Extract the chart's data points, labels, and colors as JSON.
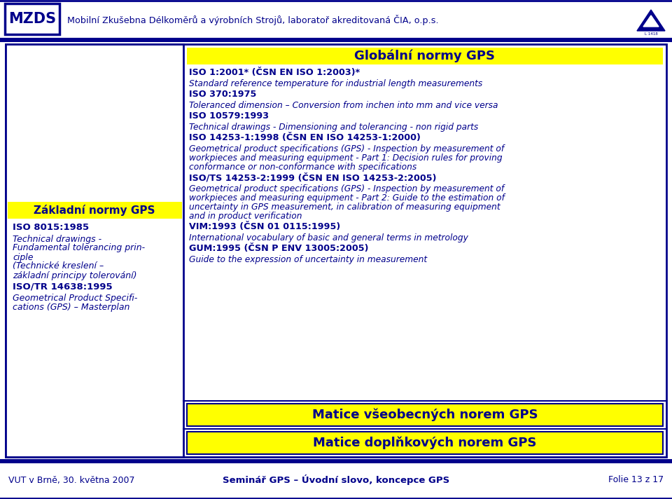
{
  "bg_color": "#ffffff",
  "dark_blue": "#00008B",
  "yellow_color": "#FFFF00",
  "header_company": "Mobilní Zkušebna Délkoměrů a výrobních Strojů, laboratoř akreditovaná ČIA, o.p.s.",
  "footer_left": "VUT v Brně, 30. května 2007",
  "footer_center": "Seminář GPS – Úvodní slovo, koncepce GPS",
  "footer_right": "Folie 13 z 17",
  "left_box_title": "Základní normy GPS",
  "right_box_title": "Globální normy GPS",
  "bottom_box1": "Matice všeobecných norem GPS",
  "bottom_box2": "Matice doplňkových norem GPS",
  "left_items": [
    {
      "bold": true,
      "italic": false,
      "text": "ISO 8015:1985"
    },
    {
      "bold": false,
      "italic": true,
      "text": "Technical drawings -\nFundamental tolerancing prin-\nciple\n(Technické kreslení –\nzákladní principy tolerování)"
    },
    {
      "bold": true,
      "italic": false,
      "text": "ISO/TR 14638:1995"
    },
    {
      "bold": false,
      "italic": true,
      "text": "Geometrical Product Specifi-\ncations (GPS) – Masterplan"
    }
  ],
  "right_items": [
    {
      "bold": true,
      "italic": false,
      "text": "ISO 1:2001* (ČSN EN ISO 1:2003)*"
    },
    {
      "bold": false,
      "italic": true,
      "text": "Standard reference temperature for industrial length measurements"
    },
    {
      "bold": true,
      "italic": false,
      "text": "ISO 370:1975"
    },
    {
      "bold": false,
      "italic": true,
      "text": "Toleranced dimension – Conversion from inchen into mm and vice versa"
    },
    {
      "bold": true,
      "italic": false,
      "text": "ISO 10579:1993"
    },
    {
      "bold": false,
      "italic": true,
      "text": "Technical drawings - Dimensioning and tolerancing - non rigid parts"
    },
    {
      "bold": true,
      "italic": false,
      "text": "ISO 14253-1:1998 (ČSN EN ISO 14253-1:2000)"
    },
    {
      "bold": false,
      "italic": true,
      "text": "Geometrical product specifications (GPS) - Inspection by measurement of\nworkpieces and measuring equipment - Part 1: Decision rules for proving\nconformance or non-conformance with specifications"
    },
    {
      "bold": true,
      "italic": false,
      "text": "ISO/TS 14253-2:1999 (ČSN EN ISO 14253-2:2005)"
    },
    {
      "bold": false,
      "italic": true,
      "text": "Geometrical product specifications (GPS) - Inspection by measurement of\nworkpieces and measuring equipment - Part 2: Guide to the estimation of\nuncertainty in GPS measurement, in calibration of measuring equipment\nand in product verification"
    },
    {
      "bold": true,
      "italic": false,
      "text": "VIM:1993 (ČSN 01 0115:1995)"
    },
    {
      "bold": false,
      "italic": true,
      "text": "International vocabulary of basic and general terms in metrology"
    },
    {
      "bold": true,
      "italic": false,
      "text": "GUM:1995 (ČSN P ENV 13005:2005)"
    },
    {
      "bold": false,
      "italic": true,
      "text": "Guide to the expression of uncertainty in measurement"
    }
  ]
}
